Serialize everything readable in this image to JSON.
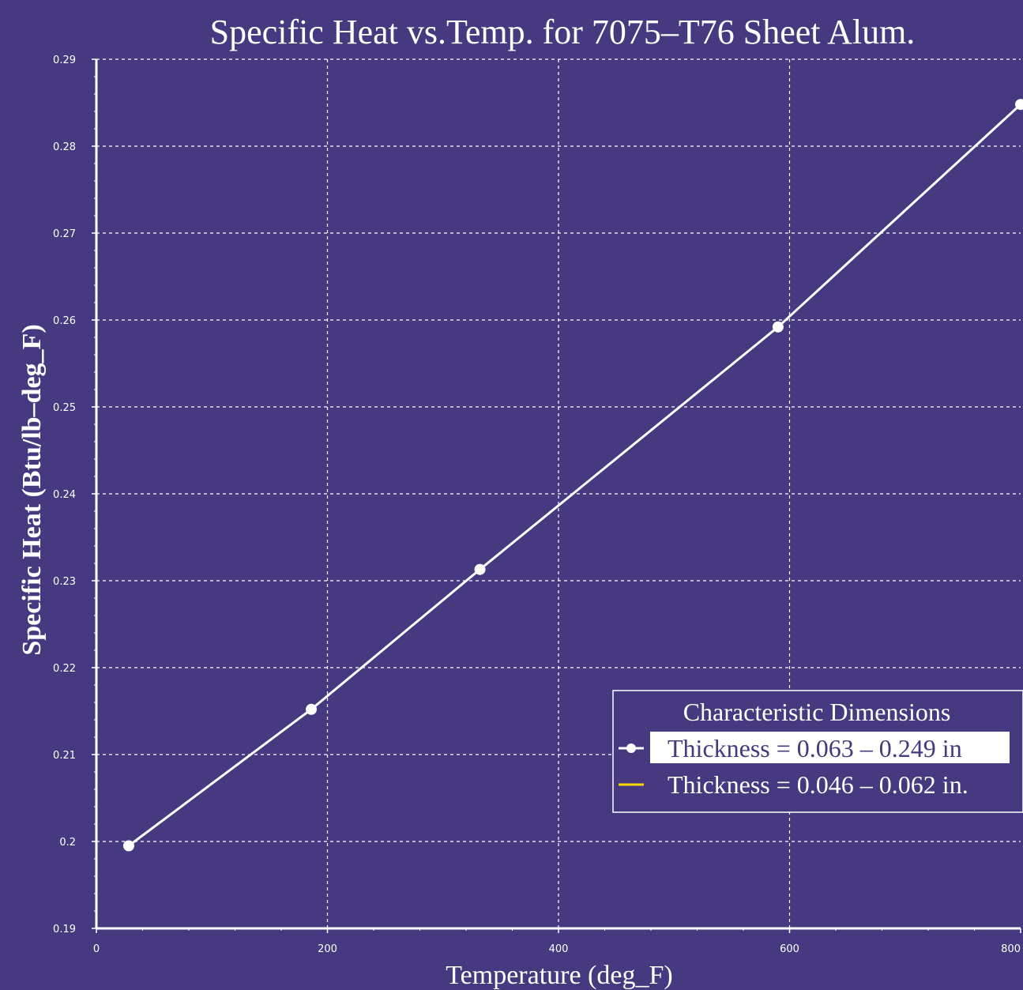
{
  "chart_data": {
    "type": "line",
    "title": "Specific Heat vs.Temp. for 7075–T76 Sheet Alum.",
    "xlabel": "Temperature (deg_F)",
    "ylabel": "Specific Heat (Btu/lb–deg_F)",
    "xlim": [
      0,
      800
    ],
    "ylim": [
      0.19,
      0.29
    ],
    "xticks": [
      "0",
      "200",
      "400",
      "600",
      "800"
    ],
    "yticks": [
      "0.19",
      "0.2",
      "0.21",
      "0.22",
      "0.23",
      "0.24",
      "0.25",
      "0.26",
      "0.27",
      "0.28",
      "0.29"
    ],
    "grid": true,
    "legend_title": "Characteristic Dimensions",
    "legend_position": "lower-right",
    "series": [
      {
        "name": "Thickness = 0.063 – 0.249 in",
        "color": "#ffffff",
        "marker": "circle",
        "x": [
          28,
          186,
          332,
          590,
          800
        ],
        "y": [
          0.1995,
          0.2152,
          0.2313,
          0.2592,
          0.2848
        ]
      },
      {
        "name": "Thickness = 0.046 – 0.062 in.",
        "color": "#ffd700",
        "marker": "none",
        "x": [],
        "y": []
      }
    ]
  },
  "colors": {
    "background": "#46397f",
    "grid": "#ffffff",
    "axis": "#ffffff"
  }
}
